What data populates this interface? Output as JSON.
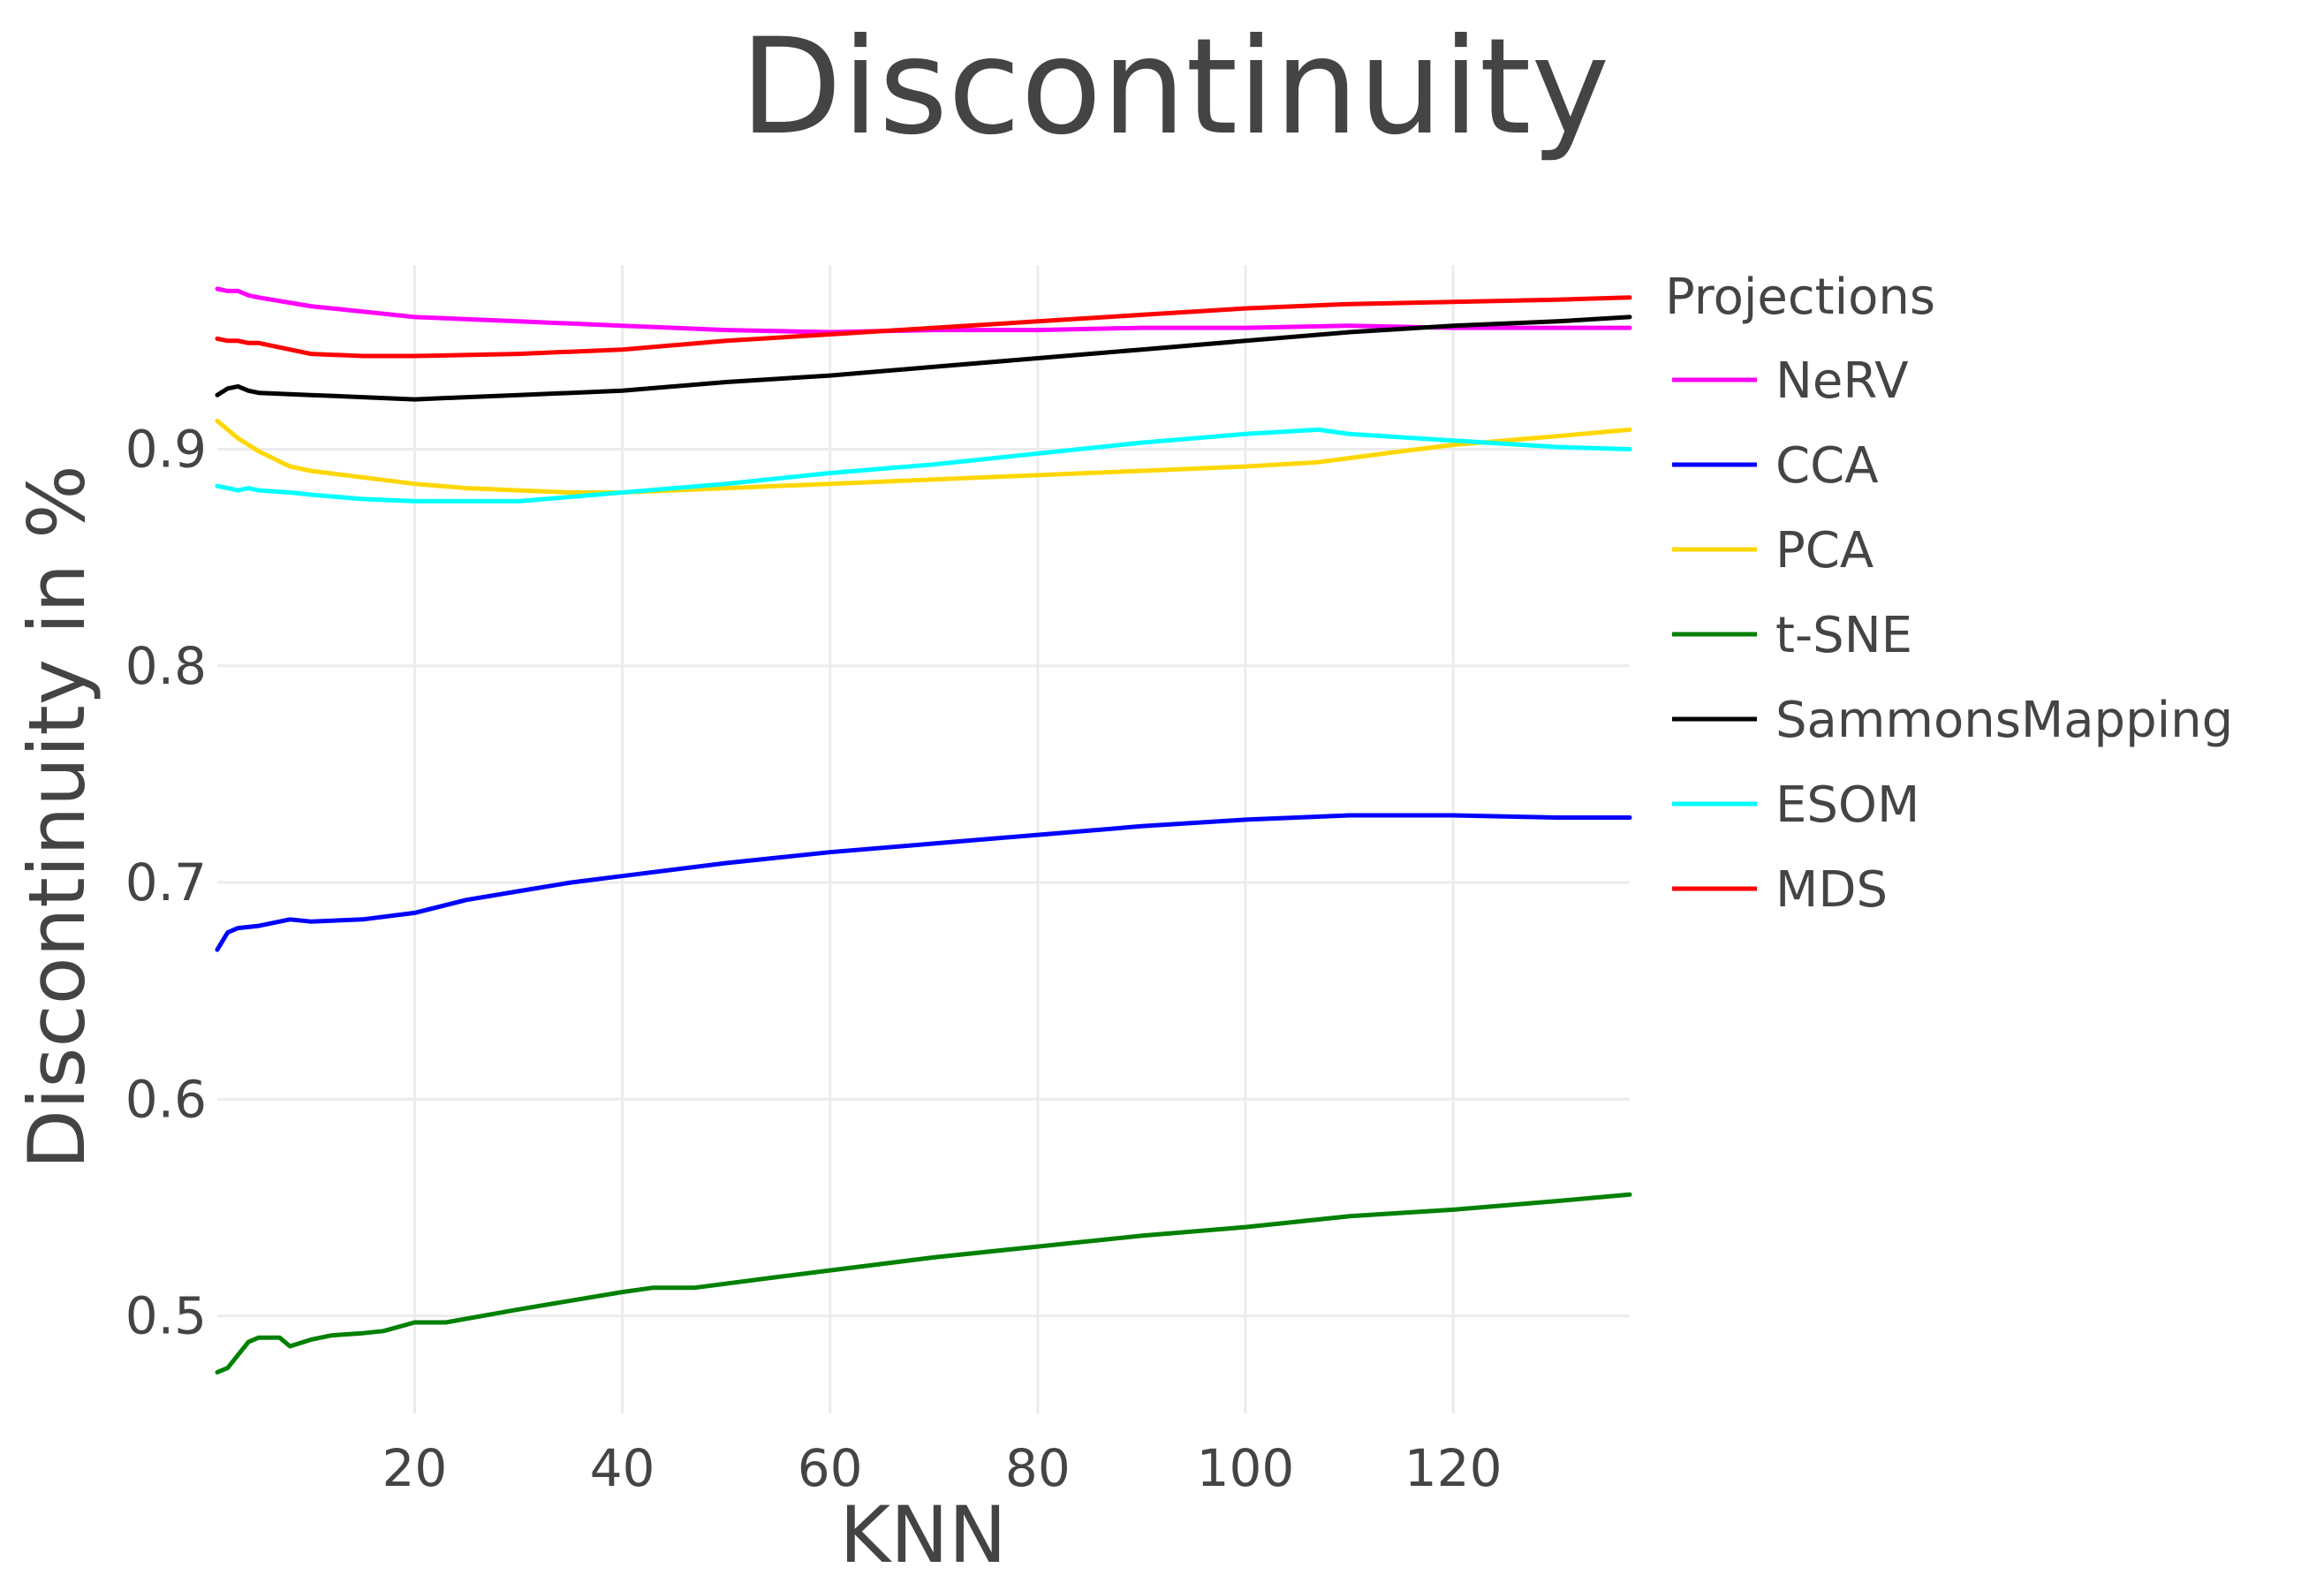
{
  "chart_data": {
    "type": "line",
    "title": "Discontinuity",
    "xlabel": "KNN",
    "ylabel": "Discontinuity in %",
    "xlim": [
      1,
      137
    ],
    "ylim": [
      0.455,
      0.985
    ],
    "x_ticks": [
      20,
      40,
      60,
      80,
      100,
      120
    ],
    "y_ticks": [
      0.5,
      0.6,
      0.7,
      0.8,
      0.9
    ],
    "x_tick_labels": [
      "20",
      "40",
      "60",
      "80",
      "100",
      "120"
    ],
    "y_tick_labels": [
      "0.5",
      "0.6",
      "0.7",
      "0.8",
      "0.9"
    ],
    "grid": true,
    "legend": {
      "title": "Projections",
      "position": "right"
    },
    "series": [
      {
        "name": "NeRV",
        "color": "#ff00ff",
        "x": [
          1,
          2,
          3,
          4,
          5,
          10,
          20,
          30,
          40,
          50,
          60,
          70,
          80,
          90,
          100,
          110,
          120,
          130,
          137
        ],
        "y": [
          0.974,
          0.973,
          0.973,
          0.971,
          0.97,
          0.966,
          0.961,
          0.959,
          0.957,
          0.955,
          0.954,
          0.955,
          0.955,
          0.956,
          0.956,
          0.957,
          0.956,
          0.956,
          0.956
        ]
      },
      {
        "name": "CCA",
        "color": "#0000ff",
        "x": [
          1,
          2,
          3,
          5,
          8,
          10,
          15,
          20,
          25,
          30,
          35,
          40,
          50,
          60,
          70,
          80,
          90,
          100,
          110,
          120,
          130,
          137
        ],
        "y": [
          0.669,
          0.677,
          0.679,
          0.68,
          0.683,
          0.682,
          0.683,
          0.686,
          0.692,
          0.696,
          0.7,
          0.703,
          0.709,
          0.714,
          0.718,
          0.722,
          0.726,
          0.729,
          0.731,
          0.731,
          0.73,
          0.73
        ]
      },
      {
        "name": "PCA",
        "color": "#ffd700",
        "x": [
          1,
          3,
          5,
          8,
          10,
          15,
          20,
          25,
          30,
          35,
          40,
          50,
          60,
          70,
          80,
          90,
          100,
          107,
          115,
          120,
          130,
          137
        ],
        "y": [
          0.913,
          0.905,
          0.899,
          0.892,
          0.89,
          0.887,
          0.884,
          0.882,
          0.881,
          0.88,
          0.88,
          0.882,
          0.884,
          0.886,
          0.888,
          0.89,
          0.892,
          0.894,
          0.899,
          0.902,
          0.906,
          0.909
        ]
      },
      {
        "name": "t-SNE",
        "color": "#008000",
        "x": [
          1,
          2,
          3,
          4,
          5,
          7,
          8,
          10,
          12,
          15,
          17,
          20,
          23,
          30,
          40,
          43,
          47,
          55,
          60,
          70,
          80,
          90,
          100,
          110,
          120,
          130,
          137
        ],
        "y": [
          0.474,
          0.476,
          0.482,
          0.488,
          0.49,
          0.49,
          0.486,
          0.489,
          0.491,
          0.492,
          0.493,
          0.497,
          0.497,
          0.503,
          0.511,
          0.513,
          0.513,
          0.518,
          0.521,
          0.527,
          0.532,
          0.537,
          0.541,
          0.546,
          0.549,
          0.553,
          0.556
        ]
      },
      {
        "name": "SammonsMapping",
        "color": "#000000",
        "x": [
          1,
          2,
          3,
          4,
          5,
          10,
          15,
          20,
          25,
          30,
          40,
          50,
          60,
          70,
          80,
          90,
          100,
          110,
          120,
          130,
          137
        ],
        "y": [
          0.925,
          0.928,
          0.929,
          0.927,
          0.926,
          0.925,
          0.924,
          0.923,
          0.924,
          0.925,
          0.927,
          0.931,
          0.934,
          0.938,
          0.942,
          0.946,
          0.95,
          0.954,
          0.957,
          0.959,
          0.961
        ]
      },
      {
        "name": "ESOM",
        "color": "#00ffff",
        "x": [
          1,
          2,
          3,
          4,
          5,
          8,
          10,
          15,
          20,
          25,
          30,
          35,
          40,
          50,
          60,
          70,
          80,
          90,
          100,
          107,
          110,
          120,
          130,
          137
        ],
        "y": [
          0.883,
          0.882,
          0.881,
          0.882,
          0.881,
          0.88,
          0.879,
          0.877,
          0.876,
          0.876,
          0.876,
          0.878,
          0.88,
          0.884,
          0.889,
          0.893,
          0.898,
          0.903,
          0.907,
          0.909,
          0.907,
          0.904,
          0.901,
          0.9
        ]
      },
      {
        "name": "MDS",
        "color": "#ff0000",
        "x": [
          1,
          2,
          3,
          4,
          5,
          8,
          10,
          15,
          20,
          30,
          40,
          50,
          60,
          70,
          80,
          90,
          100,
          110,
          120,
          130,
          137
        ],
        "y": [
          0.951,
          0.95,
          0.95,
          0.949,
          0.949,
          0.946,
          0.944,
          0.943,
          0.943,
          0.944,
          0.946,
          0.95,
          0.953,
          0.956,
          0.959,
          0.962,
          0.965,
          0.967,
          0.968,
          0.969,
          0.97
        ]
      }
    ]
  }
}
